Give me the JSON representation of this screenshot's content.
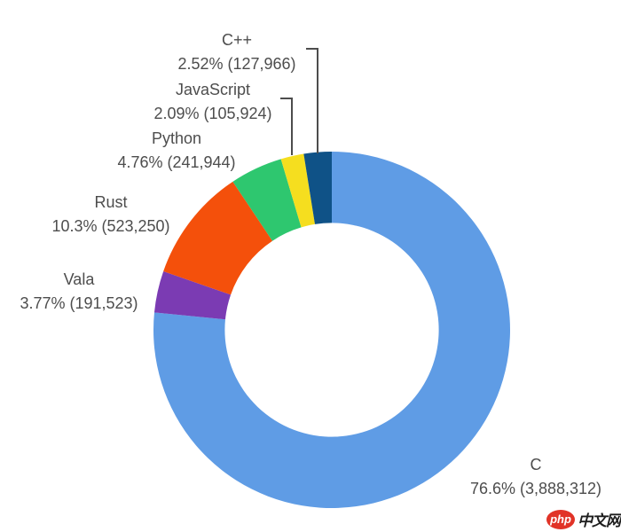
{
  "chart_data": {
    "type": "donut",
    "title": "",
    "legend_position": "none",
    "direction": "clockwise",
    "start_angle_deg": 0,
    "inner_radius_ratio": 0.6,
    "text_color": "#4D4D4D",
    "leader_line_color": "#4D4D4D",
    "slices": [
      {
        "label": "C",
        "pct": "76.6%",
        "count": "3,888,312",
        "value": 3888312,
        "color": "#5F9CE5",
        "detail": "76.6% (3,888,312)"
      },
      {
        "label": "Vala",
        "pct": "3.77%",
        "count": "191,523",
        "value": 191523,
        "color": "#7B3BB3",
        "detail": "3.77% (191,523)"
      },
      {
        "label": "Rust",
        "pct": "10.3%",
        "count": "523,250",
        "value": 523250,
        "color": "#F4500B",
        "detail": "10.3% (523,250)"
      },
      {
        "label": "Python",
        "pct": "4.76%",
        "count": "241,944",
        "value": 241944,
        "color": "#2EC76F",
        "detail": "4.76% (241,944)"
      },
      {
        "label": "JavaScript",
        "pct": "2.09%",
        "count": "105,924",
        "value": 105924,
        "color": "#F5DE1F",
        "detail": "2.09% (105,924)"
      },
      {
        "label": "C++",
        "pct": "2.52%",
        "count": "127,966",
        "value": 127966,
        "color": "#0F5287",
        "detail": "2.52% (127,966)"
      }
    ]
  },
  "watermark": {
    "badge": "php",
    "site": "中文网",
    "badge_color": "#E13327"
  }
}
